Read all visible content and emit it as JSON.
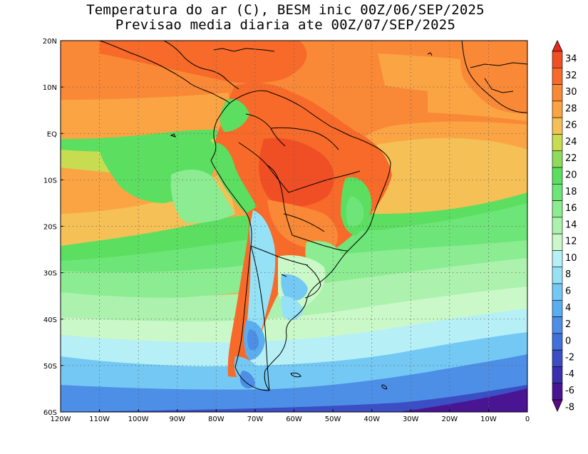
{
  "title_line1": "Temperatura do ar (C), BESM inic 00Z/06/SEP/2025",
  "title_line2": "Previsao media diaria ate 00Z/07/SEP/2025",
  "map": {
    "lon_range": [
      -120,
      0
    ],
    "lat_range": [
      -60,
      20
    ],
    "grid": "dotted",
    "x_ticks": [
      "120W",
      "110W",
      "100W",
      "90W",
      "80W",
      "70W",
      "60W",
      "50W",
      "40W",
      "30W",
      "20W",
      "10W",
      "0"
    ],
    "y_ticks": [
      "20N",
      "10N",
      "EQ",
      "10S",
      "20S",
      "30S",
      "40S",
      "50S",
      "60S"
    ]
  },
  "colorbar": {
    "labels": [
      "34",
      "32",
      "30",
      "28",
      "26",
      "24",
      "22",
      "20",
      "18",
      "16",
      "14",
      "12",
      "10",
      "8",
      "6",
      "4",
      "2",
      "0",
      "-2",
      "-4",
      "-6",
      "-8"
    ],
    "colors": [
      "#e8281c",
      "#f04e24",
      "#f76a2a",
      "#f98936",
      "#fba443",
      "#f5c055",
      "#c8dc52",
      "#8fdc5c",
      "#5cde60",
      "#6ee578",
      "#8cec92",
      "#acf2ae",
      "#caf8c8",
      "#b6f0f6",
      "#95e2f6",
      "#74c8f4",
      "#5aaef0",
      "#4d8ee6",
      "#4070d8",
      "#3b4ec4",
      "#3a2fae",
      "#4a1592",
      "#5a0a82"
    ]
  }
}
